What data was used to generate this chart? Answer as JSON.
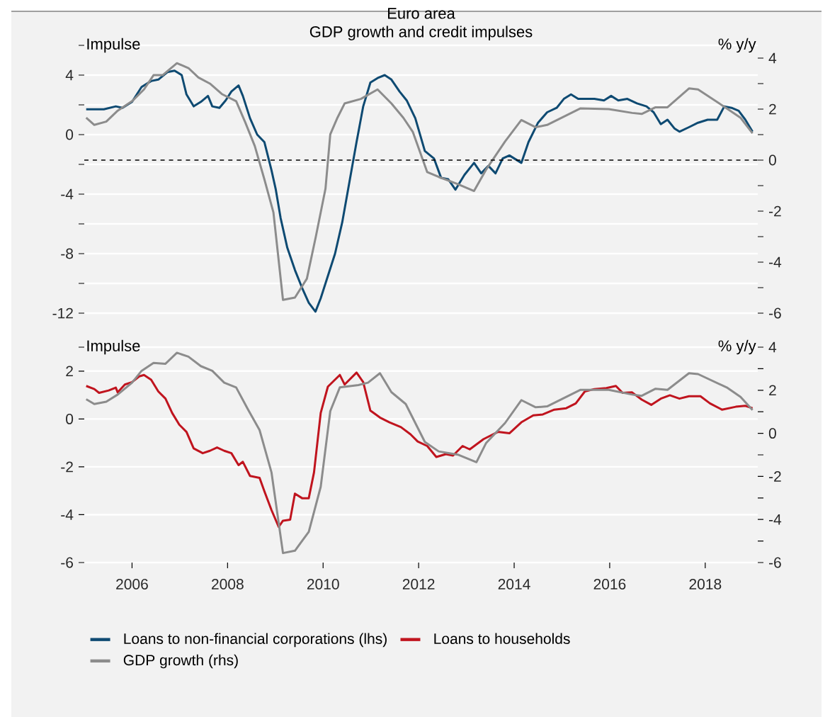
{
  "chart_data": [
    {
      "type": "line",
      "title": "Euro area",
      "subtitle": "GDP growth and credit impulses",
      "ylabel": "Impulse",
      "y2label": "% y/y",
      "xlim": [
        2005,
        2019.1
      ],
      "xticks": [
        2006,
        2008,
        2010,
        2012,
        2014,
        2016,
        2018
      ],
      "tick_labels": "y",
      "ylim": [
        -12,
        6
      ],
      "yticks": [
        {
          "value": 6,
          "label": null
        },
        4,
        {
          "value": 2,
          "label": null
        },
        0,
        {
          "value": -2,
          "label": null
        },
        -4,
        {
          "value": -6,
          "label": null
        },
        -8,
        {
          "value": -10,
          "label": null
        },
        -12
      ],
      "y2lim": [
        -6,
        4.5
      ],
      "y2ticks": [
        4,
        {
          "value": 3,
          "label": null
        },
        2,
        {
          "value": 1,
          "label": null
        },
        0,
        {
          "value": -1,
          "label": null
        },
        -2,
        {
          "value": -3,
          "label": null
        },
        -4,
        {
          "value": -5,
          "label": null
        },
        -6
      ],
      "grid": "y",
      "ref_lines": [
        {
          "axis": "y2",
          "value": 0,
          "line_style": "dashed",
          "color": "#000000"
        }
      ],
      "series": [
        {
          "name": "Loans to non-financial corporations (lhs)",
          "color": "#0e4a72",
          "x": [
            2005.04,
            2005.41,
            2005.66,
            2005.8,
            2006.0,
            2006.2,
            2006.4,
            2006.55,
            2006.74,
            2006.89,
            2007.04,
            2007.14,
            2007.29,
            2007.44,
            2007.59,
            2007.68,
            2007.83,
            2007.96,
            2008.08,
            2008.23,
            2008.32,
            2008.47,
            2008.62,
            2008.77,
            2008.92,
            2009.01,
            2009.11,
            2009.25,
            2009.41,
            2009.56,
            2009.7,
            2009.84,
            2009.95,
            2010.1,
            2010.25,
            2010.4,
            2010.55,
            2010.7,
            2010.84,
            2010.99,
            2011.14,
            2011.29,
            2011.43,
            2011.6,
            2011.75,
            2011.93,
            2012.13,
            2012.32,
            2012.47,
            2012.62,
            2012.77,
            2012.96,
            2013.16,
            2013.31,
            2013.46,
            2013.61,
            2013.76,
            2013.9,
            2014.15,
            2014.3,
            2014.5,
            2014.69,
            2014.89,
            2015.04,
            2015.19,
            2015.34,
            2015.48,
            2015.68,
            2015.88,
            2016.03,
            2016.18,
            2016.37,
            2016.57,
            2016.77,
            2016.92,
            2017.07,
            2017.21,
            2017.36,
            2017.46,
            2017.66,
            2017.85,
            2018.05,
            2018.25,
            2018.4,
            2018.55,
            2018.7,
            2018.84,
            2018.99
          ],
          "values": [
            1.7,
            1.7,
            1.9,
            1.8,
            2.2,
            3.2,
            3.6,
            3.7,
            4.2,
            4.3,
            4.0,
            2.7,
            1.9,
            2.2,
            2.6,
            1.9,
            1.8,
            2.3,
            2.9,
            3.3,
            2.6,
            1.1,
            0.0,
            -0.5,
            -2.4,
            -3.7,
            -5.6,
            -7.6,
            -9.1,
            -10.3,
            -11.3,
            -11.9,
            -11.0,
            -9.5,
            -8.0,
            -5.9,
            -3.2,
            -0.5,
            1.9,
            3.5,
            3.8,
            4.0,
            3.7,
            2.9,
            2.3,
            1.1,
            -1.1,
            -1.6,
            -2.9,
            -3.0,
            -3.7,
            -2.7,
            -1.9,
            -2.6,
            -2.1,
            -2.6,
            -1.6,
            -1.4,
            -1.9,
            -0.5,
            0.8,
            1.5,
            1.8,
            2.4,
            2.7,
            2.4,
            2.4,
            2.4,
            2.3,
            2.6,
            2.3,
            2.4,
            2.1,
            1.9,
            1.5,
            0.7,
            1.0,
            0.4,
            0.2,
            0.5,
            0.8,
            1.0,
            1.0,
            1.9,
            1.8,
            1.6,
            1.0,
            0.2
          ]
        },
        {
          "name": "GDP growth (rhs)",
          "color": "#8c8c8c",
          "axis": "y2",
          "x": [
            2005.04,
            2005.21,
            2005.46,
            2005.7,
            2006.0,
            2006.25,
            2006.45,
            2006.64,
            2006.94,
            2007.18,
            2007.39,
            2007.63,
            2007.88,
            2008.18,
            2008.37,
            2008.57,
            2008.77,
            2008.96,
            2009.16,
            2009.41,
            2009.66,
            2009.85,
            2010.05,
            2010.15,
            2010.3,
            2010.45,
            2010.79,
            2011.14,
            2011.43,
            2011.68,
            2011.88,
            2012.18,
            2012.42,
            2012.82,
            2013.16,
            2013.41,
            2013.81,
            2014.15,
            2014.45,
            2014.69,
            2015.39,
            2015.98,
            2016.47,
            2016.67,
            2016.96,
            2017.21,
            2017.66,
            2017.85,
            2018.45,
            2018.74,
            2018.99
          ],
          "values": [
            1.66,
            1.38,
            1.51,
            1.94,
            2.31,
            2.77,
            3.33,
            3.33,
            3.8,
            3.61,
            3.24,
            3.0,
            2.59,
            2.31,
            1.48,
            0.55,
            -0.75,
            -2.05,
            -5.48,
            -5.39,
            -4.65,
            -2.98,
            -1.12,
            1.01,
            1.66,
            2.22,
            2.4,
            2.77,
            2.22,
            1.66,
            1.1,
            -0.47,
            -0.66,
            -0.94,
            -1.21,
            -0.38,
            0.73,
            1.57,
            1.29,
            1.38,
            2.03,
            2.0,
            1.85,
            1.81,
            2.07,
            2.07,
            2.81,
            2.77,
            2.03,
            1.66,
            1.05
          ]
        }
      ]
    },
    {
      "type": "line",
      "ylabel": "Impulse",
      "y2label": "% y/y",
      "xlim": [
        2005,
        2019.1
      ],
      "xticks": [
        2006,
        2008,
        2010,
        2012,
        2014,
        2016,
        2018
      ],
      "ylim": [
        -6,
        3
      ],
      "yticks": [
        {
          "value": 3,
          "label": null
        },
        2,
        0,
        -2,
        -4,
        -6
      ],
      "y2lim": [
        -6,
        4
      ],
      "y2ticks": [
        4,
        {
          "value": 3,
          "label": null
        },
        2,
        {
          "value": 1,
          "label": null
        },
        0,
        {
          "value": -1,
          "label": null
        },
        -2,
        {
          "value": -3,
          "label": null
        },
        -4,
        {
          "value": -5,
          "label": null
        },
        -6
      ],
      "grid": "y",
      "legend": "bottom",
      "series": [
        {
          "name": "Loans to households",
          "color": "#c0141e",
          "x": [
            2005.04,
            2005.21,
            2005.31,
            2005.51,
            2005.66,
            2005.7,
            2005.85,
            2006.0,
            2006.15,
            2006.25,
            2006.4,
            2006.55,
            2006.7,
            2006.84,
            2006.99,
            2007.14,
            2007.29,
            2007.48,
            2007.63,
            2007.78,
            2007.93,
            2008.08,
            2008.23,
            2008.32,
            2008.47,
            2008.67,
            2008.77,
            2008.92,
            2009.07,
            2009.16,
            2009.31,
            2009.41,
            2009.56,
            2009.7,
            2009.81,
            2009.95,
            2010.1,
            2010.35,
            2010.45,
            2010.7,
            2010.84,
            2010.99,
            2011.19,
            2011.39,
            2011.63,
            2011.83,
            2011.98,
            2012.18,
            2012.37,
            2012.57,
            2012.72,
            2012.92,
            2013.07,
            2013.36,
            2013.66,
            2013.9,
            2014.15,
            2014.4,
            2014.6,
            2014.84,
            2015.09,
            2015.29,
            2015.48,
            2015.68,
            2015.93,
            2016.13,
            2016.27,
            2016.47,
            2016.67,
            2016.87,
            2017.07,
            2017.26,
            2017.46,
            2017.66,
            2017.9,
            2018.1,
            2018.35,
            2018.64,
            2018.84,
            2018.99
          ],
          "values": [
            1.38,
            1.25,
            1.09,
            1.19,
            1.31,
            1.11,
            1.44,
            1.54,
            1.78,
            1.84,
            1.64,
            1.15,
            0.85,
            0.25,
            -0.24,
            -0.54,
            -1.23,
            -1.43,
            -1.33,
            -1.19,
            -1.33,
            -1.43,
            -1.93,
            -1.79,
            -2.38,
            -2.46,
            -3.02,
            -3.81,
            -4.51,
            -4.25,
            -4.21,
            -3.12,
            -3.31,
            -3.31,
            -2.23,
            0.25,
            1.35,
            1.84,
            1.44,
            1.94,
            1.54,
            0.35,
            0.06,
            -0.14,
            -0.34,
            -0.64,
            -0.94,
            -1.13,
            -1.59,
            -1.47,
            -1.53,
            -1.13,
            -1.27,
            -0.84,
            -0.54,
            -0.6,
            -0.14,
            0.15,
            0.19,
            0.39,
            0.45,
            0.65,
            1.15,
            1.25,
            1.29,
            1.38,
            1.09,
            1.11,
            0.81,
            0.59,
            0.85,
            0.99,
            0.85,
            0.95,
            0.95,
            0.65,
            0.39,
            0.51,
            0.55,
            0.45
          ]
        },
        {
          "color": "#8c8c8c",
          "axis": "y2",
          "x": [
            2005.04,
            2005.21,
            2005.46,
            2005.7,
            2006.0,
            2006.2,
            2006.45,
            2006.7,
            2006.94,
            2007.18,
            2007.44,
            2007.68,
            2007.93,
            2008.18,
            2008.42,
            2008.67,
            2008.92,
            2009.16,
            2009.41,
            2009.7,
            2009.95,
            2010.15,
            2010.35,
            2010.74,
            2010.94,
            2011.19,
            2011.43,
            2011.73,
            2012.13,
            2012.42,
            2012.82,
            2013.21,
            2013.41,
            2013.81,
            2014.15,
            2014.45,
            2014.69,
            2015.39,
            2015.98,
            2016.47,
            2016.67,
            2016.96,
            2017.21,
            2017.66,
            2017.85,
            2018.45,
            2018.74,
            2018.99
          ],
          "values": [
            1.58,
            1.36,
            1.47,
            1.8,
            2.35,
            2.9,
            3.27,
            3.23,
            3.74,
            3.56,
            3.12,
            2.9,
            2.35,
            2.13,
            1.14,
            0.15,
            -1.82,
            -5.56,
            -5.45,
            -4.57,
            -2.48,
            1.03,
            2.13,
            2.24,
            2.35,
            2.79,
            1.91,
            1.36,
            -0.4,
            -0.84,
            -0.99,
            -1.34,
            -0.46,
            0.48,
            1.54,
            1.21,
            1.25,
            2.02,
            2.02,
            1.8,
            1.74,
            2.07,
            2.02,
            2.79,
            2.75,
            2.13,
            1.69,
            1.08
          ]
        }
      ]
    }
  ]
}
